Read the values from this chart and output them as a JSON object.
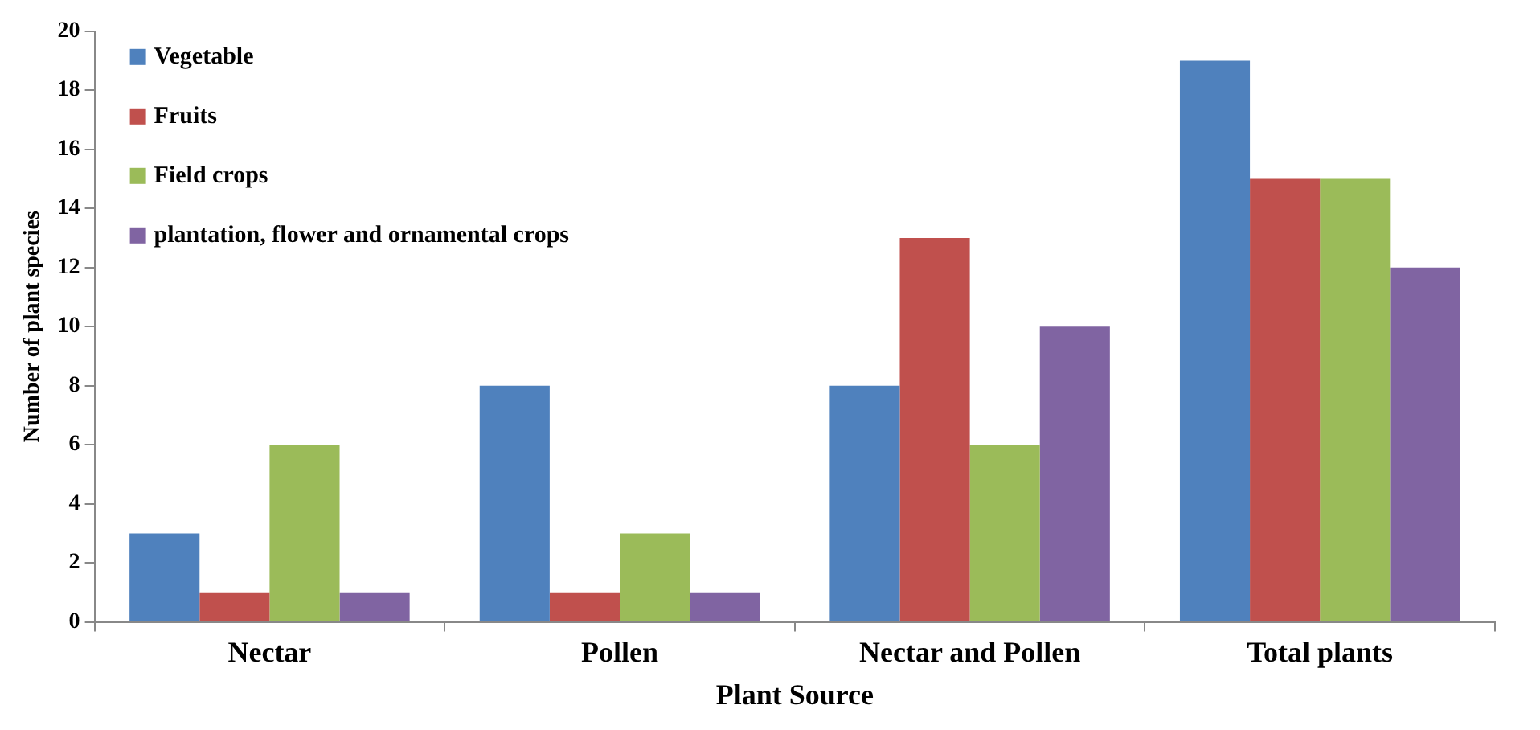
{
  "chart_data": {
    "type": "bar",
    "xlabel": "Plant Source",
    "ylabel": "Number of plant species",
    "categories": [
      "Nectar",
      "Pollen",
      "Nectar and Pollen",
      "Total plants"
    ],
    "series": [
      {
        "name": "Vegetable",
        "color": "#4f81bd",
        "values": [
          3,
          8,
          8,
          19
        ]
      },
      {
        "name": "Fruits",
        "color": "#c0504d",
        "values": [
          1,
          1,
          13,
          15
        ]
      },
      {
        "name": "Field crops",
        "color": "#9bbb59",
        "values": [
          6,
          3,
          6,
          15
        ]
      },
      {
        "name": "plantation, flower and ornamental crops",
        "color": "#8064a2",
        "values": [
          1,
          1,
          10,
          12
        ]
      }
    ],
    "ylim": [
      0,
      20
    ],
    "yticks": [
      0,
      2,
      4,
      6,
      8,
      10,
      12,
      14,
      16,
      18,
      20
    ],
    "grid": false,
    "legend": "top left"
  }
}
